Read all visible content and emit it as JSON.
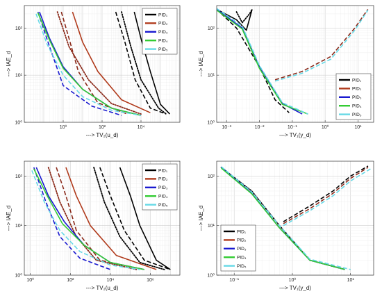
{
  "chart_data": [
    {
      "type": "line",
      "id": "tl",
      "xscale": "log",
      "yscale": "log",
      "xlim": [
        0.01,
        1000000
      ],
      "ylim": [
        1,
        300
      ],
      "xticks": [
        {
          "v": 1,
          "label": "10⁰"
        },
        {
          "v": 100,
          "label": "10²"
        },
        {
          "v": 10000,
          "label": "10⁴"
        }
      ],
      "yticks": [
        {
          "v": 1,
          "label": "10⁰"
        },
        {
          "v": 10,
          "label": "10¹"
        },
        {
          "v": 100,
          "label": "10²"
        }
      ],
      "xlabel": "---> TV₂(u_d)",
      "ylabel": "---> IAE_d",
      "grid": true,
      "legend": {
        "placement": "top-right",
        "entries": [
          "PID₁",
          "PID₂",
          "PID₃",
          "PID₄",
          "PID₅"
        ]
      },
      "series": [
        {
          "name": "PID₁",
          "color": "#000000",
          "style": "solid",
          "x": [
            4500,
            10000,
            30000,
            100000,
            300000
          ],
          "y": [
            220,
            60,
            12,
            2.4,
            1.5
          ]
        },
        {
          "name": "PID₁",
          "color": "#000000",
          "style": "dashed",
          "x": [
            500,
            1500,
            5000,
            30000,
            200000
          ],
          "y": [
            220,
            50,
            8,
            2.0,
            1.5
          ]
        },
        {
          "name": "PID₁",
          "color": "#000000",
          "style": "dotted",
          "x": [
            1000,
            3000,
            10000,
            80000,
            200000
          ],
          "y": [
            220,
            40,
            8,
            2.0,
            1.5
          ]
        },
        {
          "name": "PID₂",
          "color": "#b03a1b",
          "style": "solid",
          "x": [
            3,
            10,
            60,
            1000,
            30000
          ],
          "y": [
            220,
            50,
            12,
            3,
            1.6
          ]
        },
        {
          "name": "PID₂",
          "color": "#8b2a1a",
          "style": "dashed",
          "x": [
            0.8,
            2,
            6,
            60,
            2000
          ],
          "y": [
            220,
            60,
            12,
            2.6,
            1.5
          ]
        },
        {
          "name": "PID₂",
          "color": "#8b2a1a",
          "style": "dotted",
          "x": [
            0.5,
            2,
            20,
            300,
            10000
          ],
          "y": [
            220,
            40,
            8,
            2.5,
            1.5
          ]
        },
        {
          "name": "PID₃",
          "color": "#1a1ad0",
          "style": "solid",
          "x": [
            0.06,
            0.2,
            1,
            10,
            300,
            10000
          ],
          "y": [
            220,
            60,
            15,
            5,
            2,
            1.4
          ]
        },
        {
          "name": "PID₃",
          "color": "#1a1ad0",
          "style": "dashed",
          "x": [
            0.05,
            0.2,
            1,
            30,
            1000
          ],
          "y": [
            220,
            40,
            6,
            2.2,
            1.4
          ]
        },
        {
          "name": "PID₄",
          "color": "#33cc33",
          "style": "solid",
          "x": [
            0.05,
            0.2,
            1,
            10,
            300,
            10000
          ],
          "y": [
            210,
            55,
            14,
            5,
            2,
            1.4
          ]
        },
        {
          "name": "PID₅",
          "color": "#66d9e6",
          "style": "dashed",
          "x": [
            0.04,
            0.15,
            1,
            10,
            300,
            10000
          ],
          "y": [
            200,
            45,
            10,
            3.5,
            1.8,
            1.4
          ]
        }
      ]
    },
    {
      "type": "line",
      "id": "tr",
      "xscale": "log",
      "yscale": "log",
      "xlim": [
        0.0005,
        30
      ],
      "ylim": [
        1,
        300
      ],
      "xticks": [
        {
          "v": 0.001,
          "label": "10⁻³"
        },
        {
          "v": 0.01,
          "label": "10⁻²"
        },
        {
          "v": 0.1,
          "label": "10⁻¹"
        },
        {
          "v": 1,
          "label": "10⁰"
        },
        {
          "v": 10,
          "label": "10¹"
        }
      ],
      "yticks": [
        {
          "v": 1,
          "label": "10⁰"
        },
        {
          "v": 10,
          "label": "10¹"
        },
        {
          "v": 100,
          "label": "10²"
        }
      ],
      "xlabel": "---> TV₁(y_d)",
      "ylabel": "---> IAE_d",
      "grid": true,
      "legend": {
        "placement": "bottom-right",
        "entries": [
          "PID₁",
          "PID₂",
          "PID₃",
          "PID₄",
          "PID₅"
        ]
      },
      "series": [
        {
          "name": "PID₁",
          "color": "#000000",
          "style": "solid",
          "x": [
            0.0005,
            0.002,
            0.004,
            0.006
          ],
          "y": [
            250,
            150,
            90,
            250
          ]
        },
        {
          "name": "PID₁",
          "color": "#000000",
          "style": "dashed",
          "x": [
            0.0005,
            0.002,
            0.01,
            0.03,
            0.08
          ],
          "y": [
            250,
            100,
            15,
            3,
            1.6
          ]
        },
        {
          "name": "PID₁",
          "color": "#000000",
          "style": "dotted",
          "x": [
            0.002,
            0.003,
            0.005,
            0.006
          ],
          "y": [
            220,
            130,
            200,
            250
          ]
        },
        {
          "name": "PID₂",
          "color": "#8b2a1a",
          "style": "dashed",
          "x": [
            0.03,
            0.2,
            1.5,
            8,
            20
          ],
          "y": [
            8,
            12,
            25,
            100,
            250
          ]
        },
        {
          "name": "PID₃",
          "color": "#1a1ad0",
          "style": "solid",
          "x": [
            0.0005,
            0.003,
            0.01,
            0.05,
            0.2
          ],
          "y": [
            250,
            100,
            15,
            2.5,
            1.5
          ]
        },
        {
          "name": "PID₄",
          "color": "#33cc33",
          "style": "solid",
          "x": [
            0.0005,
            0.003,
            0.01,
            0.05,
            0.3
          ],
          "y": [
            240,
            95,
            14,
            2.4,
            1.5
          ]
        },
        {
          "name": "PID₅",
          "color": "#66d9e6",
          "style": "dashed",
          "x": [
            0.0005,
            0.003,
            0.01,
            0.05,
            0.3
          ],
          "y": [
            260,
            110,
            16,
            2.6,
            1.5
          ]
        },
        {
          "name": "PID₅",
          "color": "#66d9e6",
          "style": "dashed",
          "x": [
            0.03,
            0.2,
            1.5,
            8,
            20
          ],
          "y": [
            7.5,
            11,
            22,
            90,
            240
          ]
        }
      ]
    },
    {
      "type": "line",
      "id": "bl",
      "xscale": "log",
      "yscale": "log",
      "xlim": [
        0.5,
        30000000
      ],
      "ylim": [
        1,
        200
      ],
      "xticks": [
        {
          "v": 1,
          "label": "10⁰"
        },
        {
          "v": 100,
          "label": "10²"
        },
        {
          "v": 10000,
          "label": "10⁴"
        },
        {
          "v": 1000000,
          "label": "10⁶"
        }
      ],
      "yticks": [
        {
          "v": 1,
          "label": "10⁰"
        },
        {
          "v": 10,
          "label": "10¹"
        },
        {
          "v": 100,
          "label": "10²"
        }
      ],
      "xlabel": "---> TV₂(u_d)",
      "ylabel": "---> IAE_d",
      "grid": true,
      "legend": {
        "placement": "top-right",
        "entries": [
          "PID₁",
          "PID₂",
          "PID₃",
          "PID₄",
          "PID₅"
        ]
      },
      "series": [
        {
          "name": "PID₁",
          "color": "#000000",
          "style": "solid",
          "x": [
            30000,
            100000,
            300000,
            2000000,
            10000000
          ],
          "y": [
            150,
            40,
            10,
            2,
            1.3
          ]
        },
        {
          "name": "PID₁",
          "color": "#000000",
          "style": "dashed",
          "x": [
            3000,
            10000,
            50000,
            500000,
            10000000
          ],
          "y": [
            150,
            40,
            8,
            2,
            1.3
          ]
        },
        {
          "name": "PID₁",
          "color": "#000000",
          "style": "dotted",
          "x": [
            1500,
            5000,
            30000,
            300000,
            5000000
          ],
          "y": [
            150,
            30,
            6,
            1.8,
            1.3
          ]
        },
        {
          "name": "PID₂",
          "color": "#b03a1b",
          "style": "solid",
          "x": [
            60,
            200,
            1000,
            20000,
            2000000
          ],
          "y": [
            150,
            40,
            10,
            2.5,
            1.3
          ]
        },
        {
          "name": "PID₂",
          "color": "#8b2a1a",
          "style": "dashed",
          "x": [
            20,
            60,
            200,
            3000,
            500000
          ],
          "y": [
            150,
            40,
            8,
            2,
            1.3
          ]
        },
        {
          "name": "PID₂",
          "color": "#8b2a1a",
          "style": "dotted",
          "x": [
            8,
            30,
            200,
            2000,
            200000
          ],
          "y": [
            150,
            30,
            6,
            2,
            1.3
          ]
        },
        {
          "name": "PID₃",
          "color": "#1a1ad0",
          "style": "solid",
          "x": [
            2,
            8,
            50,
            500,
            10000,
            500000
          ],
          "y": [
            150,
            40,
            12,
            4,
            1.8,
            1.3
          ]
        },
        {
          "name": "PID₃",
          "color": "#1a1ad0",
          "style": "dashed",
          "x": [
            1.5,
            6,
            30,
            300,
            10000
          ],
          "y": [
            150,
            30,
            6,
            2.2,
            1.3
          ]
        },
        {
          "name": "PID₄",
          "color": "#33cc33",
          "style": "solid",
          "x": [
            1.5,
            7,
            40,
            500,
            10000,
            500000
          ],
          "y": [
            140,
            40,
            11,
            4,
            1.8,
            1.3
          ]
        },
        {
          "name": "PID₅",
          "color": "#66d9e6",
          "style": "dashed",
          "x": [
            1.2,
            5,
            30,
            300,
            10000,
            300000
          ],
          "y": [
            130,
            30,
            8,
            3,
            1.6,
            1.3
          ]
        }
      ]
    },
    {
      "type": "line",
      "id": "br",
      "xscale": "log",
      "yscale": "log",
      "xlim": [
        0.05,
        25
      ],
      "ylim": [
        1,
        200
      ],
      "xticks": [
        {
          "v": 0.1,
          "label": "10⁻¹"
        },
        {
          "v": 1,
          "label": "10⁰"
        },
        {
          "v": 10,
          "label": "10¹"
        }
      ],
      "yticks": [
        {
          "v": 1,
          "label": "10⁰"
        },
        {
          "v": 10,
          "label": "10¹"
        },
        {
          "v": 100,
          "label": "10²"
        }
      ],
      "xlabel": "---> TV₁(y_d)",
      "ylabel": "---> IAE_d",
      "grid": true,
      "legend": {
        "placement": "bottom-left",
        "entries": [
          "PID₁",
          "PID₂",
          "PID₃",
          "PID₄",
          "PID₅"
        ]
      },
      "series": [
        {
          "name": "PID₁",
          "color": "#000000",
          "style": "dotted",
          "x": [
            0.06,
            0.2,
            0.6,
            2,
            8
          ],
          "y": [
            150,
            50,
            10,
            2,
            1.3
          ]
        },
        {
          "name": "PID₁",
          "color": "#000000",
          "style": "dashed",
          "x": [
            0.7,
            2,
            5,
            10,
            20
          ],
          "y": [
            12,
            25,
            50,
            100,
            160
          ]
        },
        {
          "name": "PID₂",
          "color": "#8b2a1a",
          "style": "dashed",
          "x": [
            0.7,
            2,
            5,
            10,
            20
          ],
          "y": [
            11,
            22,
            45,
            90,
            150
          ]
        },
        {
          "name": "PID₃",
          "color": "#1a1ad0",
          "style": "solid",
          "x": [
            0.06,
            0.2,
            0.6,
            2,
            8
          ],
          "y": [
            150,
            45,
            9,
            2,
            1.3
          ]
        },
        {
          "name": "PID₄",
          "color": "#33cc33",
          "style": "solid",
          "x": [
            0.06,
            0.2,
            0.6,
            2,
            8
          ],
          "y": [
            145,
            44,
            9,
            2,
            1.3
          ]
        },
        {
          "name": "PID₅",
          "color": "#66d9e6",
          "style": "dashed",
          "x": [
            0.06,
            0.2,
            0.6,
            2,
            10
          ],
          "y": [
            155,
            48,
            10,
            2.1,
            1.3
          ]
        },
        {
          "name": "PID₅",
          "color": "#66d9e6",
          "style": "dashed",
          "x": [
            0.7,
            2,
            5,
            10,
            22
          ],
          "y": [
            10,
            20,
            40,
            80,
            140
          ]
        }
      ]
    }
  ]
}
